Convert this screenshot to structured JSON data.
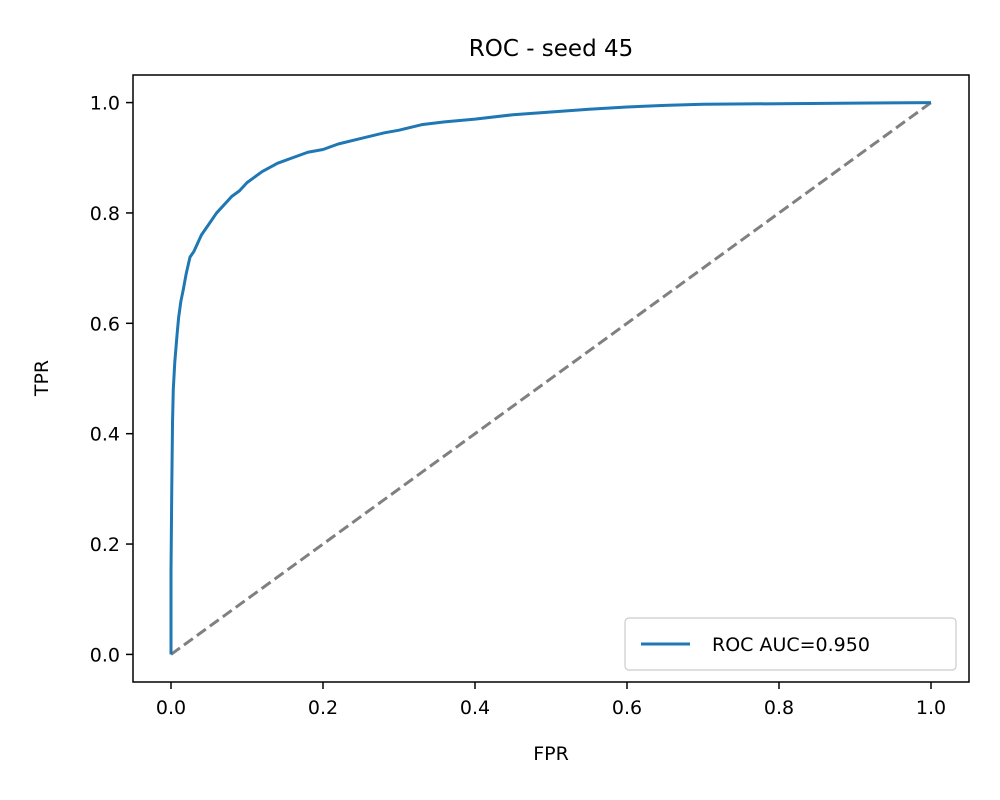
{
  "chart_data": {
    "type": "line",
    "title": "ROC - seed 45",
    "xlabel": "FPR",
    "ylabel": "TPR",
    "xlim": [
      -0.05,
      1.05
    ],
    "ylim": [
      -0.05,
      1.05
    ],
    "xticks": [
      "0.0",
      "0.2",
      "0.4",
      "0.6",
      "0.8",
      "1.0"
    ],
    "yticks": [
      "0.0",
      "0.2",
      "0.4",
      "0.6",
      "0.8",
      "1.0"
    ],
    "grid": false,
    "legend_position": "lower-right",
    "series": [
      {
        "name": "ROC AUC=0.950",
        "color": "#1f77b4",
        "style": "solid",
        "x": [
          0.0,
          0.0,
          0.001,
          0.002,
          0.003,
          0.005,
          0.008,
          0.01,
          0.013,
          0.016,
          0.02,
          0.025,
          0.03,
          0.04,
          0.05,
          0.06,
          0.07,
          0.08,
          0.09,
          0.1,
          0.12,
          0.14,
          0.16,
          0.18,
          0.2,
          0.22,
          0.25,
          0.28,
          0.3,
          0.33,
          0.36,
          0.4,
          0.45,
          0.5,
          0.55,
          0.6,
          0.65,
          0.7,
          0.8,
          0.9,
          1.0
        ],
        "y": [
          0.0,
          0.15,
          0.3,
          0.42,
          0.48,
          0.53,
          0.58,
          0.61,
          0.64,
          0.66,
          0.69,
          0.72,
          0.73,
          0.76,
          0.78,
          0.8,
          0.815,
          0.83,
          0.84,
          0.855,
          0.875,
          0.89,
          0.9,
          0.91,
          0.915,
          0.925,
          0.935,
          0.945,
          0.95,
          0.96,
          0.965,
          0.97,
          0.978,
          0.983,
          0.988,
          0.992,
          0.995,
          0.997,
          0.998,
          0.999,
          1.0
        ]
      },
      {
        "name": "",
        "color": "#808080",
        "style": "dashed",
        "x": [
          0.0,
          1.0
        ],
        "y": [
          0.0,
          1.0
        ]
      }
    ]
  }
}
